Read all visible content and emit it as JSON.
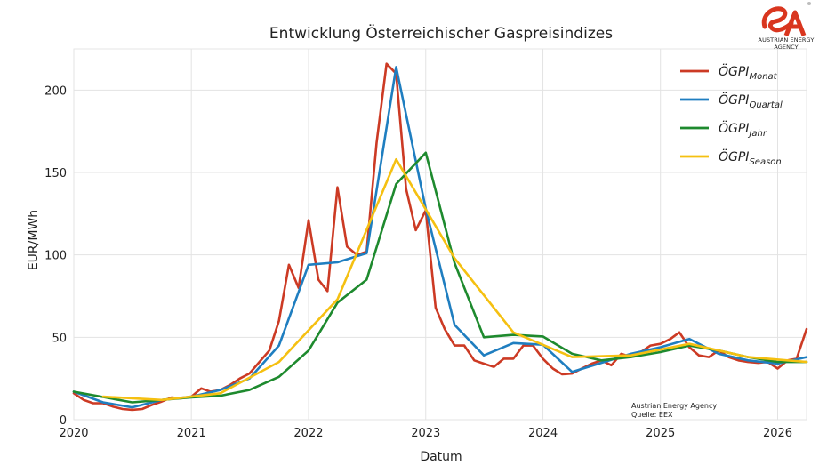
{
  "brand": {
    "logo_icon": "austrian-energy-agency-logo",
    "logo_color": "#d9361f",
    "name": "AUSTRIAN ENERGY AGENCY"
  },
  "source_note": {
    "line1": "Austrian Energy Agency",
    "line2": "Quelle: EEX"
  },
  "chart_data": {
    "type": "line",
    "title": "Entwicklung Österreichischer Gaspreisindizes",
    "xlabel": "Datum",
    "ylabel": "EUR/MWh",
    "xlim": [
      "2020-01-01",
      "2026-04-01"
    ],
    "ylim": [
      0,
      225
    ],
    "x_ticks": [
      "2020",
      "2021",
      "2022",
      "2023",
      "2024",
      "2025",
      "2026"
    ],
    "y_ticks": [
      0,
      50,
      100,
      150,
      200
    ],
    "grid": true,
    "legend_position": "top-right",
    "series": [
      {
        "name": "ÖGPI",
        "subscript": "Monat",
        "color": "#cc3a24",
        "points": [
          [
            "2020-01-01",
            16
          ],
          [
            "2020-02-01",
            12
          ],
          [
            "2020-03-01",
            10
          ],
          [
            "2020-04-01",
            10
          ],
          [
            "2020-05-01",
            8
          ],
          [
            "2020-06-01",
            6.5
          ],
          [
            "2020-07-01",
            6
          ],
          [
            "2020-08-01",
            6.5
          ],
          [
            "2020-09-01",
            9
          ],
          [
            "2020-10-01",
            11
          ],
          [
            "2020-11-01",
            13.5
          ],
          [
            "2020-12-01",
            13
          ],
          [
            "2021-01-01",
            14
          ],
          [
            "2021-02-01",
            19
          ],
          [
            "2021-03-01",
            17
          ],
          [
            "2021-04-01",
            18
          ],
          [
            "2021-05-01",
            21
          ],
          [
            "2021-06-01",
            25
          ],
          [
            "2021-07-01",
            28
          ],
          [
            "2021-08-01",
            35
          ],
          [
            "2021-09-01",
            42
          ],
          [
            "2021-10-01",
            60
          ],
          [
            "2021-11-01",
            94
          ],
          [
            "2021-12-01",
            80
          ],
          [
            "2022-01-01",
            121
          ],
          [
            "2022-02-01",
            85
          ],
          [
            "2022-03-01",
            78
          ],
          [
            "2022-04-01",
            141
          ],
          [
            "2022-05-01",
            105
          ],
          [
            "2022-06-01",
            100
          ],
          [
            "2022-07-01",
            102
          ],
          [
            "2022-08-01",
            168
          ],
          [
            "2022-09-01",
            216
          ],
          [
            "2022-10-01",
            210
          ],
          [
            "2022-11-01",
            140
          ],
          [
            "2022-12-01",
            115
          ],
          [
            "2023-01-01",
            127
          ],
          [
            "2023-02-01",
            68
          ],
          [
            "2023-03-01",
            55
          ],
          [
            "2023-04-01",
            45
          ],
          [
            "2023-05-01",
            45
          ],
          [
            "2023-06-01",
            36
          ],
          [
            "2023-07-01",
            34
          ],
          [
            "2023-08-01",
            32
          ],
          [
            "2023-09-01",
            37
          ],
          [
            "2023-10-01",
            37
          ],
          [
            "2023-11-01",
            45
          ],
          [
            "2023-12-01",
            45
          ],
          [
            "2024-01-01",
            37
          ],
          [
            "2024-02-01",
            31
          ],
          [
            "2024-03-01",
            27.5
          ],
          [
            "2024-04-01",
            28
          ],
          [
            "2024-05-01",
            31
          ],
          [
            "2024-06-01",
            34
          ],
          [
            "2024-07-01",
            36
          ],
          [
            "2024-08-01",
            33
          ],
          [
            "2024-09-01",
            40
          ],
          [
            "2024-10-01",
            38
          ],
          [
            "2024-11-01",
            41
          ],
          [
            "2024-12-01",
            45
          ],
          [
            "2025-01-01",
            46
          ],
          [
            "2025-02-01",
            49
          ],
          [
            "2025-03-01",
            53
          ],
          [
            "2025-04-01",
            44
          ],
          [
            "2025-05-01",
            39
          ],
          [
            "2025-06-01",
            38
          ],
          [
            "2025-07-01",
            42
          ],
          [
            "2025-08-01",
            38
          ],
          [
            "2025-09-01",
            36
          ],
          [
            "2025-10-01",
            35
          ],
          [
            "2025-11-01",
            34.5
          ],
          [
            "2025-12-01",
            35
          ],
          [
            "2026-01-01",
            31
          ],
          [
            "2026-02-01",
            36
          ],
          [
            "2026-03-01",
            37
          ],
          [
            "2026-04-01",
            55
          ]
        ]
      },
      {
        "name": "ÖGPI",
        "subscript": "Quartal",
        "color": "#1f7ec0",
        "points": [
          [
            "2020-01-01",
            17
          ],
          [
            "2020-04-01",
            10.5
          ],
          [
            "2020-07-01",
            7.5
          ],
          [
            "2020-10-01",
            12
          ],
          [
            "2021-01-01",
            14
          ],
          [
            "2021-04-01",
            18
          ],
          [
            "2021-07-01",
            25
          ],
          [
            "2021-10-01",
            45
          ],
          [
            "2022-01-01",
            94
          ],
          [
            "2022-04-01",
            95.5
          ],
          [
            "2022-07-01",
            101
          ],
          [
            "2022-10-01",
            214
          ],
          [
            "2023-01-01",
            128
          ],
          [
            "2023-04-01",
            57.5
          ],
          [
            "2023-07-01",
            39
          ],
          [
            "2023-10-01",
            46.5
          ],
          [
            "2024-01-01",
            45.5
          ],
          [
            "2024-04-01",
            29
          ],
          [
            "2024-07-01",
            34.5
          ],
          [
            "2024-10-01",
            40
          ],
          [
            "2025-01-01",
            44
          ],
          [
            "2025-04-01",
            49
          ],
          [
            "2025-07-01",
            40
          ],
          [
            "2025-10-01",
            36
          ],
          [
            "2026-01-01",
            34
          ],
          [
            "2026-04-01",
            38
          ]
        ]
      },
      {
        "name": "ÖGPI",
        "subscript": "Jahr",
        "color": "#1e8a2e",
        "points": [
          [
            "2020-01-01",
            17
          ],
          [
            "2020-07-01",
            10.5
          ],
          [
            "2021-01-01",
            13.5
          ],
          [
            "2021-04-01",
            14.5
          ],
          [
            "2021-07-01",
            18
          ],
          [
            "2021-10-01",
            26
          ],
          [
            "2022-01-01",
            42
          ],
          [
            "2022-04-01",
            71
          ],
          [
            "2022-07-01",
            85
          ],
          [
            "2022-10-01",
            143
          ],
          [
            "2023-01-01",
            162
          ],
          [
            "2023-04-01",
            95
          ],
          [
            "2023-07-01",
            50
          ],
          [
            "2023-10-01",
            51.5
          ],
          [
            "2024-01-01",
            50.5
          ],
          [
            "2024-04-01",
            40
          ],
          [
            "2024-07-01",
            36
          ],
          [
            "2024-10-01",
            38
          ],
          [
            "2025-01-01",
            41
          ],
          [
            "2025-04-01",
            45
          ],
          [
            "2025-07-01",
            42
          ],
          [
            "2025-10-01",
            38
          ],
          [
            "2026-01-01",
            35
          ],
          [
            "2026-04-01",
            35
          ]
        ]
      },
      {
        "name": "ÖGPI",
        "subscript": "Season",
        "color": "#f5c011",
        "points": [
          [
            "2020-04-01",
            14
          ],
          [
            "2020-10-01",
            12
          ],
          [
            "2021-04-01",
            16
          ],
          [
            "2021-10-01",
            35
          ],
          [
            "2022-04-01",
            73
          ],
          [
            "2022-10-01",
            158
          ],
          [
            "2023-04-01",
            98
          ],
          [
            "2023-10-01",
            53
          ],
          [
            "2024-04-01",
            38
          ],
          [
            "2024-10-01",
            39
          ],
          [
            "2025-04-01",
            46
          ],
          [
            "2025-10-01",
            38
          ],
          [
            "2026-04-01",
            35
          ]
        ]
      }
    ]
  }
}
